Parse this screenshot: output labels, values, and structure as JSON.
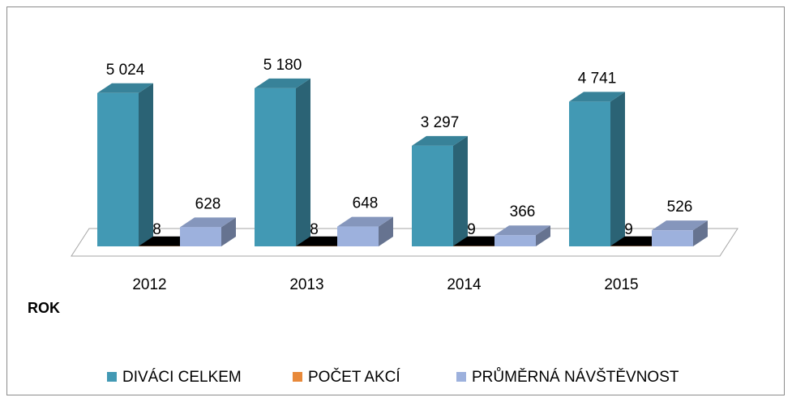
{
  "chart_data": {
    "type": "bar3d",
    "categories": [
      "2012",
      "2013",
      "2014",
      "2015"
    ],
    "x_label": "ROK",
    "series": [
      {
        "name": "DIVÁCI CELKEM",
        "color": "#4299b4",
        "values": [
          5024,
          5180,
          3297,
          4741
        ],
        "value_labels": [
          "5 024",
          "5 180",
          "3 297",
          "4 741"
        ]
      },
      {
        "name": "POČET AKCÍ",
        "color": "#e8893a",
        "values": [
          8,
          8,
          9,
          9
        ]
      },
      {
        "name": "PRŮMĚRNÁ NÁVŠTĚVNOST",
        "color": "#9db1dd",
        "values": [
          628,
          648,
          366,
          526
        ]
      }
    ],
    "ylim": [
      0,
      6000
    ],
    "legend": "bottom"
  }
}
